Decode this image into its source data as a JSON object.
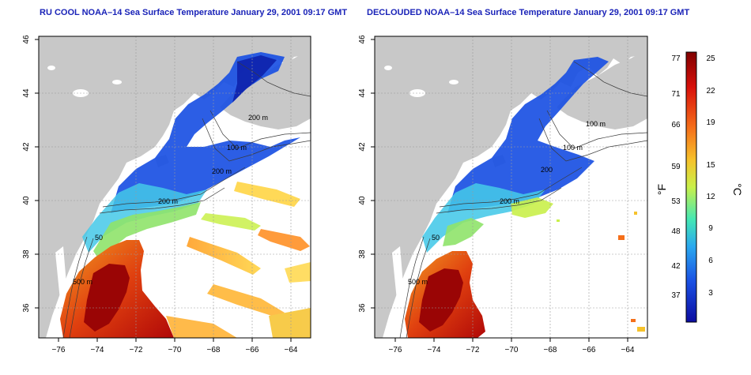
{
  "panels": [
    {
      "id": "left",
      "title": "RU COOL NOAA–14 Sea Surface Temperature January 29, 2001 09:17 GMT",
      "contour_labels": [
        "100 m",
        "200 m",
        "200 m",
        "200 m",
        "50",
        "500 m"
      ]
    },
    {
      "id": "right",
      "title": "DECLOUDED NOAA–14 Sea Surface Temperature January 29, 2001 09:17 GMT",
      "contour_labels": [
        "100 m",
        "100 m",
        "200",
        "200 m",
        "500 m",
        "50"
      ]
    }
  ],
  "axes": {
    "x_ticks": [
      "−76",
      "−74",
      "−72",
      "−70",
      "−68",
      "−66",
      "−64"
    ],
    "y_ticks": [
      "36",
      "38",
      "40",
      "42",
      "44",
      "46"
    ]
  },
  "colorbar": {
    "fahrenheit_ticks": [
      "77",
      "71",
      "66",
      "59",
      "53",
      "48",
      "42",
      "37"
    ],
    "celsius_ticks": [
      "25",
      "22",
      "19",
      "15",
      "12",
      "9",
      "6",
      "3"
    ],
    "fahrenheit_unit": "°F",
    "celsius_unit": "°C",
    "colors": [
      "#800000",
      "#d8100a",
      "#f56f1a",
      "#f6c22b",
      "#c9f04a",
      "#44e7b4",
      "#2aa8ef",
      "#1a50e3",
      "#0c0ca0"
    ]
  },
  "colors": {
    "land": "#c8c8c8",
    "title": "#1a23b8",
    "grid": "#9a9a9a"
  }
}
